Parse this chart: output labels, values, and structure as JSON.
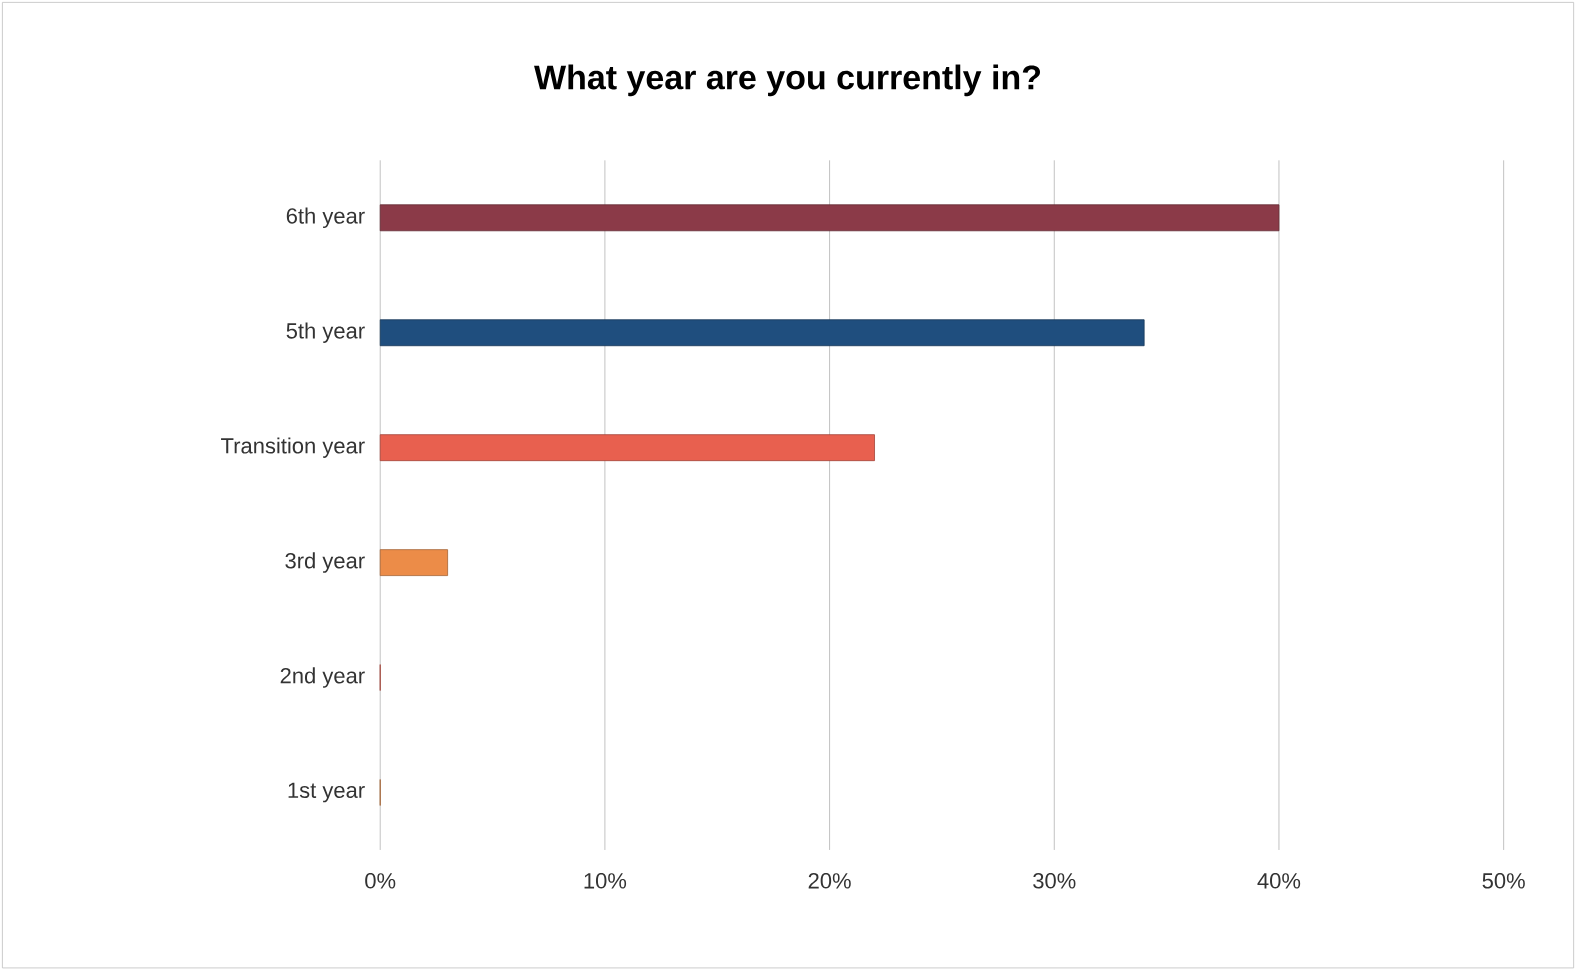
{
  "chart_data": {
    "type": "bar",
    "orientation": "horizontal",
    "title": "What year are you currently in?",
    "categories": [
      "6th year",
      "5th year",
      "Transition year",
      "3rd year",
      "2nd year",
      "1st year"
    ],
    "values": [
      40,
      34,
      22,
      3,
      0,
      0
    ],
    "colors": [
      "#8b3a48",
      "#1f4e7e",
      "#e8604f",
      "#ec8c48",
      "#e8604f",
      "#ec8c48"
    ],
    "xlim": [
      0,
      50
    ],
    "xticks": [
      {
        "value": 0,
        "label": "0%"
      },
      {
        "value": 10,
        "label": "10%"
      },
      {
        "value": 20,
        "label": "20%"
      },
      {
        "value": 30,
        "label": "30%"
      },
      {
        "value": 40,
        "label": "40%"
      },
      {
        "value": 50,
        "label": "50%"
      }
    ],
    "grid": "x"
  }
}
